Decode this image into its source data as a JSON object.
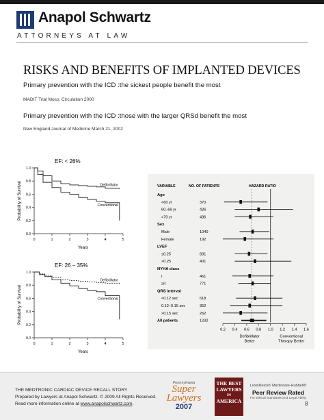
{
  "header": {
    "firm_name": "Anapol Schwartz",
    "firm_tagline": "ATTORNEYS AT LAW"
  },
  "slide": {
    "title": "RISKS AND BENEFITS OF IMPLANTED DEVICES",
    "point1": "Primary prevention with the ICD :the sickest people benefit the most",
    "source1": "MADIT Trial Moss, Circulation 2000",
    "point2": "Primary prevention with the ICD :those with the larger QRSd benefit the most",
    "source2": "New England Journal of  Medicine March 21, 2002"
  },
  "chart_data": [
    {
      "type": "line",
      "title": "EF:  < 26%",
      "xlabel": "Years",
      "ylabel": "Probability of Survival",
      "xlim": [
        0,
        5
      ],
      "ylim": [
        0.0,
        1.0
      ],
      "x_ticks": [
        "0",
        "1",
        "2",
        "3",
        "4",
        "5"
      ],
      "y_ticks": [
        "0.0",
        "0.2",
        "0.4",
        "0.6",
        "0.8",
        "1.0"
      ],
      "series": [
        {
          "name": "Defibrillator",
          "dashed": false,
          "points": [
            [
              0,
              1.0
            ],
            [
              0.2,
              0.95
            ],
            [
              0.5,
              0.88
            ],
            [
              1.0,
              0.8
            ],
            [
              1.5,
              0.76
            ],
            [
              2.0,
              0.74
            ],
            [
              2.5,
              0.73
            ],
            [
              3.0,
              0.72
            ],
            [
              3.5,
              0.71
            ],
            [
              4.0,
              0.69
            ],
            [
              4.8,
              0.68
            ]
          ]
        },
        {
          "name": "Conventional",
          "dashed": false,
          "points": [
            [
              0,
              1.0
            ],
            [
              0.2,
              0.9
            ],
            [
              0.5,
              0.78
            ],
            [
              1.0,
              0.7
            ],
            [
              1.5,
              0.63
            ],
            [
              2.0,
              0.6
            ],
            [
              2.5,
              0.55
            ],
            [
              3.0,
              0.52
            ],
            [
              3.5,
              0.49
            ],
            [
              4.0,
              0.47
            ],
            [
              4.8,
              0.46
            ],
            [
              4.8,
              0.2
            ]
          ]
        }
      ]
    },
    {
      "type": "line",
      "title": "EF: 26 – 35%",
      "xlabel": "Years",
      "ylabel": "Probability of Survival",
      "xlim": [
        0,
        5
      ],
      "ylim": [
        0.0,
        1.0
      ],
      "x_ticks": [
        "0",
        "1",
        "2",
        "3",
        "4",
        "5"
      ],
      "y_ticks": [
        "0.0",
        "0.2",
        "0.4",
        "0.6",
        "0.8",
        "1.0"
      ],
      "series": [
        {
          "name": "Defibrillator",
          "dashed": true,
          "points": [
            [
              0,
              1.0
            ],
            [
              0.3,
              0.97
            ],
            [
              0.6,
              0.95
            ],
            [
              1.0,
              0.92
            ],
            [
              1.5,
              0.88
            ],
            [
              2.0,
              0.87
            ],
            [
              2.5,
              0.86
            ],
            [
              3.0,
              0.85
            ],
            [
              3.5,
              0.84
            ],
            [
              4.0,
              0.83
            ],
            [
              4.8,
              0.82
            ]
          ]
        },
        {
          "name": "Conventional",
          "dashed": false,
          "points": [
            [
              0,
              1.0
            ],
            [
              0.3,
              0.96
            ],
            [
              0.6,
              0.93
            ],
            [
              1.0,
              0.88
            ],
            [
              1.5,
              0.83
            ],
            [
              2.0,
              0.79
            ],
            [
              2.5,
              0.75
            ],
            [
              3.0,
              0.72
            ],
            [
              3.5,
              0.7
            ],
            [
              4.0,
              0.64
            ],
            [
              4.8,
              0.62
            ],
            [
              4.8,
              0.28
            ]
          ]
        }
      ]
    },
    {
      "type": "scatter",
      "subtype": "forest",
      "column_headers": {
        "variable": "VARIABLE",
        "patients": "NO. OF PATIENTS",
        "ratio": "HAZARD RATIO"
      },
      "rows": [
        {
          "label": "Age",
          "group": true
        },
        {
          "label": "<60 yr",
          "n": "370",
          "hr": 0.5,
          "lo": 0.22,
          "hi": 0.95
        },
        {
          "label": "60–69 yr",
          "n": "426",
          "hr": 0.8,
          "lo": 0.4,
          "hi": 1.38
        },
        {
          "label": ">70 yr",
          "n": "436",
          "hr": 0.66,
          "lo": 0.4,
          "hi": 1.05
        },
        {
          "label": "Sex",
          "group": true
        },
        {
          "label": "Male",
          "n": "1040",
          "hr": 0.7,
          "lo": 0.48,
          "hi": 0.98
        },
        {
          "label": "Female",
          "n": "192",
          "hr": 0.57,
          "lo": 0.2,
          "hi": 1.05
        },
        {
          "label": "LVEF",
          "group": true
        },
        {
          "label": "≤0.25",
          "n": "831",
          "hr": 0.64,
          "lo": 0.4,
          "hi": 0.95
        },
        {
          "label": ">0.25",
          "n": "401",
          "hr": 0.74,
          "lo": 0.4,
          "hi": 1.35
        },
        {
          "label": "NYHA class",
          "group": true
        },
        {
          "label": "I",
          "n": "461",
          "hr": 0.65,
          "lo": 0.36,
          "hi": 1.05
        },
        {
          "label": "≥II",
          "n": "771",
          "hr": 0.7,
          "lo": 0.46,
          "hi": 1.0
        },
        {
          "label": "QRS interval",
          "group": true
        },
        {
          "label": "<0.12 sec",
          "n": "618",
          "hr": 0.74,
          "lo": 0.42,
          "hi": 1.2
        },
        {
          "label": "0.12–0.15 sec",
          "n": "352",
          "hr": 0.65,
          "lo": 0.32,
          "hi": 1.2
        },
        {
          "label": ">0.15 sec",
          "n": "262",
          "hr": 0.5,
          "lo": 0.2,
          "hi": 0.95
        },
        {
          "label": "All patients",
          "n": "1232",
          "hr": 0.69,
          "lo": 0.51,
          "hi": 0.93,
          "overall": true
        }
      ],
      "xlim": [
        0.2,
        1.6
      ],
      "x_ticks": [
        "0.2",
        "0.4",
        "0.6",
        "0.8",
        "1.0",
        "1.2",
        "1.4",
        "1.6"
      ],
      "reference_line": 1.0,
      "left_label": [
        "Defibrillator",
        "Better"
      ],
      "right_label": [
        "Conventional",
        "Therapy Better"
      ]
    }
  ],
  "footer": {
    "line1": "THE MEDTRONIC CARDIAC DEVICE RECALL STORY",
    "line2": "Prepared by Lawyers at Anapol Schwartz. © 2009 All Rights Reserved.",
    "line3_prefix": "Read more information online at ",
    "line3_link": "www.anapolschwartz.com",
    "line3_suffix": ".",
    "page_number": "8",
    "badge1_top": "Pennsylvania",
    "badge1_main1": "Super",
    "badge1_main2": "Lawyers",
    "badge1_year": "2007",
    "badge2_lines": [
      "THE BEST",
      "LAWYERS",
      "IN",
      "AMERICA"
    ],
    "badge3_brand": "LexisNexis® Martindale-Hubbell®",
    "badge3_title": "Peer Review Rated",
    "badge3_sub": "For Ethical Standards and Legal Ability"
  },
  "colors": {
    "logo_blue": "#1f3b73",
    "best_lawyers_red": "#6e1a1a",
    "super_lawyers_orange": "#d4701a"
  }
}
